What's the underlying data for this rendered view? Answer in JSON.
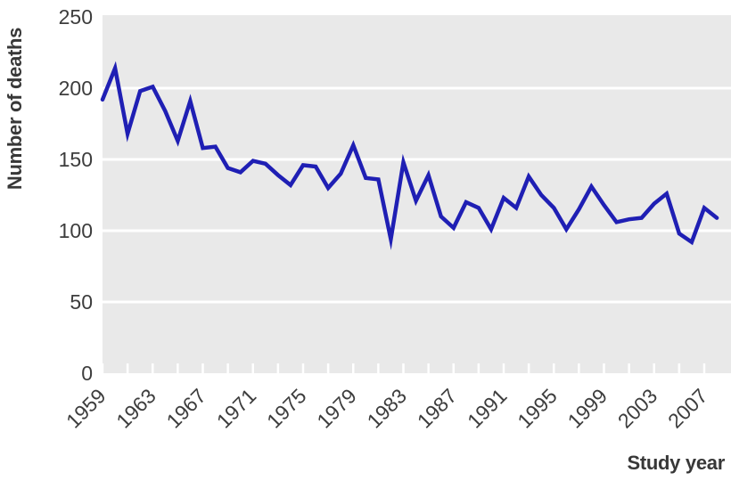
{
  "chart_data": {
    "type": "line",
    "title": "",
    "ylabel": "Number of deaths",
    "xlabel": "Study year",
    "x": [
      1959,
      1960,
      1961,
      1962,
      1963,
      1964,
      1965,
      1966,
      1967,
      1968,
      1969,
      1970,
      1971,
      1972,
      1973,
      1974,
      1975,
      1976,
      1977,
      1978,
      1979,
      1980,
      1981,
      1982,
      1983,
      1984,
      1985,
      1986,
      1987,
      1988,
      1989,
      1990,
      1991,
      1992,
      1993,
      1994,
      1995,
      1996,
      1997,
      1998,
      1999,
      2000,
      2001,
      2002,
      2003,
      2004,
      2005,
      2006,
      2007,
      2008
    ],
    "series": [
      {
        "name": "Number of deaths",
        "values": [
          192,
          214,
          168,
          198,
          201,
          184,
          163,
          191,
          158,
          159,
          144,
          141,
          149,
          147,
          139,
          132,
          146,
          145,
          130,
          140,
          160,
          137,
          136,
          94,
          148,
          121,
          139,
          110,
          102,
          120,
          116,
          101,
          123,
          116,
          138,
          125,
          116,
          101,
          115,
          131,
          118,
          106,
          108,
          109,
          119,
          126,
          98,
          92,
          116,
          109
        ]
      }
    ],
    "xlim": [
      1959,
      2009
    ],
    "ylim": [
      0,
      250
    ],
    "yticks": [
      0,
      50,
      100,
      150,
      200,
      250
    ],
    "xtick_mark_years": [
      1959,
      1961,
      1963,
      1965,
      1967,
      1969,
      1971,
      1973,
      1975,
      1977,
      1979,
      1981,
      1983,
      1985,
      1987,
      1989,
      1991,
      1993,
      1995,
      1997,
      1999,
      2001,
      2003,
      2005,
      2007
    ],
    "xtick_label_years": [
      1959,
      1963,
      1967,
      1971,
      1975,
      1979,
      1983,
      1987,
      1991,
      1995,
      1999,
      2003,
      2007
    ],
    "grid": "horizontal-white-on-gray",
    "legend": "none",
    "colors": {
      "line": "#1f1fb4",
      "panel_background": "#e9e9e9",
      "gridline": "#ffffff",
      "tick_mark": "#ffffff",
      "tick_label_text": "#3d3d3d",
      "axis_title_text": "#383838",
      "page_background": "#ffffff"
    }
  }
}
